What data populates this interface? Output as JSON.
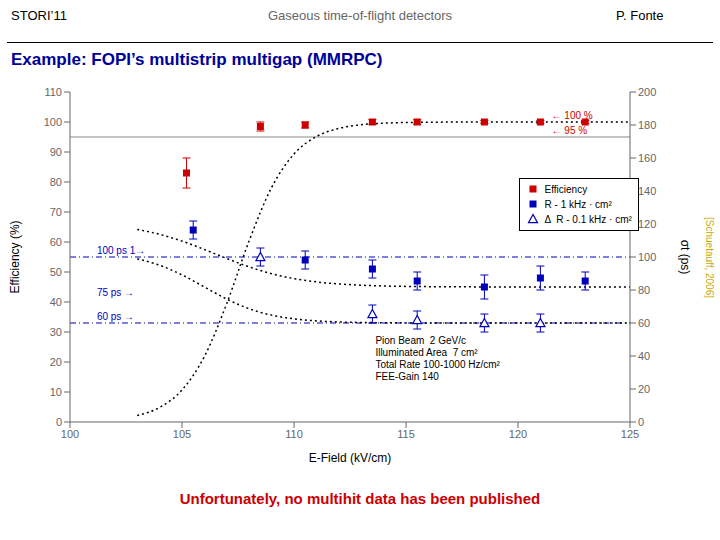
{
  "header": [
    {
      "text": "STORI’11",
      "color": "#000000"
    },
    {
      "text": "Gaseous time-of-flight detectors",
      "color": "#666666"
    },
    {
      "text": "P. Fonte",
      "color": "#000000"
    }
  ],
  "title": {
    "text": "Example: FOPI’s multistrip multigap (MMRPC)",
    "color": "#000099"
  },
  "footer": {
    "text": "Unfortunately, no multihit data has been published",
    "color": "#cc0000"
  },
  "source": {
    "text": "[Schuetauff, 2006]",
    "color": "#ccaa00"
  },
  "chart_data": {
    "type": "scatter",
    "x_label": "E-Field (kV/cm)",
    "y_label": "Efficiency (%)",
    "y2_label": "σt (ps)",
    "xlim": [
      100,
      125
    ],
    "xticks": [
      100,
      105,
      110,
      115,
      120,
      125
    ],
    "ylim": [
      0,
      110
    ],
    "yticks": [
      0,
      10,
      20,
      30,
      40,
      50,
      60,
      70,
      80,
      90,
      100,
      110
    ],
    "y2lim": [
      0,
      200
    ],
    "y2ticks": [
      0,
      20,
      40,
      60,
      80,
      100,
      120,
      140,
      160,
      180,
      200
    ],
    "grid": false,
    "legend": "upper right",
    "series": [
      {
        "name": "Efficiency",
        "color": "#cc0000",
        "marker": "square",
        "x": [
          105.2,
          108.5,
          110.5,
          113.5,
          115.5,
          118.5,
          121.0,
          123.0
        ],
        "values": [
          83,
          98.5,
          99.0,
          100,
          100,
          100,
          100,
          100
        ],
        "error_low": [
          5,
          1.5,
          1,
          0.8,
          0.8,
          0.5,
          0.5,
          0.5
        ],
        "error_high": [
          5,
          1.5,
          1,
          0.8,
          0.8,
          0.5,
          0.5,
          0.5
        ]
      },
      {
        "name": "R - 1 kHz · cm²",
        "color": "#0000bb",
        "marker": "square",
        "x": [
          105.5,
          110.5,
          113.5,
          115.5,
          118.5,
          121.0,
          123.0
        ],
        "values": [
          64,
          54,
          51,
          47,
          45,
          48,
          47
        ],
        "error": [
          3,
          3,
          3,
          3,
          4,
          4,
          3
        ]
      },
      {
        "name": "Δ  R - 0.1 kHz · cm²",
        "color": "#0000bb",
        "marker": "triangle_open",
        "x": [
          108.5,
          113.5,
          115.5,
          118.5,
          121.0
        ],
        "values": [
          55,
          36,
          34,
          33,
          33
        ],
        "error": [
          3,
          3,
          3,
          3,
          3
        ]
      },
      {
        "type": "line",
        "line_style": "dotted",
        "color": "#000000",
        "x": [
          103,
          104,
          105,
          106,
          107,
          108,
          109,
          110,
          111,
          112,
          113,
          114,
          115,
          116,
          117,
          118,
          119,
          120,
          121,
          122,
          123,
          124,
          125
        ],
        "values": [
          2.14,
          4.86,
          10.67,
          21.84,
          39.53,
          60.47,
          78.16,
          89.33,
          95.14,
          97.86,
          99.08,
          99.6,
          99.83,
          99.93,
          99.97,
          99.99,
          99.99,
          100,
          100,
          100,
          100,
          100,
          100
        ]
      },
      {
        "type": "line",
        "line_style": "dotted",
        "color": "#000000",
        "x": [
          103,
          104,
          105,
          106,
          107,
          108,
          109,
          110,
          111,
          112,
          113,
          114,
          115,
          116,
          117,
          118,
          119,
          120,
          121,
          122,
          123,
          124,
          125
        ],
        "values": [
          64.2,
          62.56,
          60.3,
          57.5,
          54.5,
          51.7,
          49.44,
          47.8,
          46.71,
          46.02,
          45.6,
          45.35,
          45.2,
          45.12,
          45.07,
          45.04,
          45.02,
          45.01,
          45.01,
          45,
          45,
          45,
          45
        ]
      },
      {
        "type": "line",
        "line_style": "dotted",
        "color": "#000000",
        "x": [
          103,
          104,
          105,
          106,
          107,
          108,
          109,
          110,
          111,
          112,
          113,
          114,
          115,
          116,
          117,
          118,
          119,
          120,
          121,
          122,
          123,
          124,
          125
        ],
        "values": [
          54.38,
          52.25,
          49.04,
          45,
          40.96,
          37.75,
          35.62,
          34.38,
          33.7,
          33.35,
          33.18,
          33.09,
          33.04,
          33.02,
          33.01,
          33.01,
          33,
          33,
          33,
          33,
          33,
          33,
          33
        ]
      }
    ],
    "reference_lines": [
      {
        "y": 95,
        "color": "#888888",
        "line_style": "solid"
      },
      {
        "y": 55,
        "color": "#0000bb",
        "line_style": "dashdot"
      },
      {
        "y": 33,
        "color": "#0000bb",
        "line_style": "dashdot"
      }
    ],
    "annotations": [
      {
        "text": "100 ps 1→",
        "x": 101.2,
        "y": 55.5,
        "color": "#0000bb"
      },
      {
        "text": "75 ps →",
        "x": 101.2,
        "y": 41.5,
        "color": "#0000bb"
      },
      {
        "text": "60 ps →",
        "x": 101.2,
        "y": 33.5,
        "color": "#0000bb"
      },
      {
        "text": "← 100 %",
        "x": 121.5,
        "y": 100.5,
        "color": "#cc0000"
      },
      {
        "text": "← 95 %",
        "x": 121.5,
        "y": 95.5,
        "color": "#cc0000"
      }
    ],
    "text_box": [
      "Pion Beam  2 GeV/c",
      "Illuminated Area  7 cm²",
      "Total Rate 100-1000 Hz/cm²",
      "FEE-Gain 140"
    ]
  }
}
